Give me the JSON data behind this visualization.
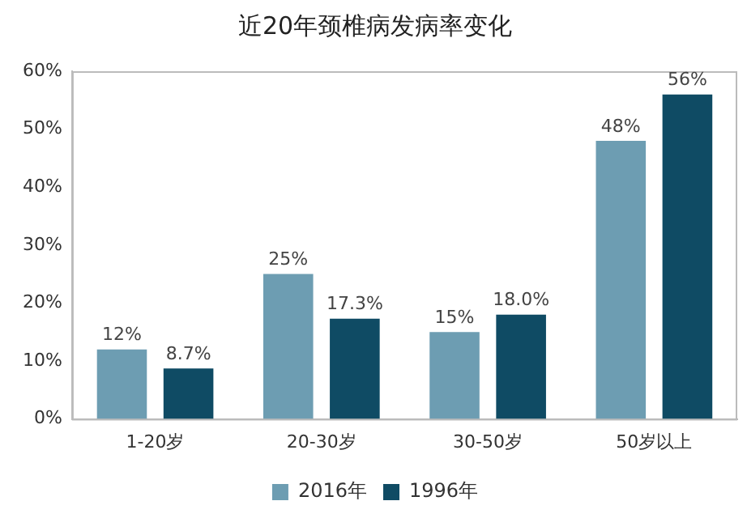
{
  "chart_data": {
    "type": "bar",
    "title": "近20年颈椎病发病率变化",
    "categories": [
      "1-20岁",
      "20-30岁",
      "30-50岁",
      "50岁以上"
    ],
    "series": [
      {
        "name": "2016年",
        "color": "#6d9db2",
        "values": [
          12,
          25,
          15,
          48
        ],
        "value_labels": [
          "12%",
          "25%",
          "15%",
          "48%"
        ]
      },
      {
        "name": "1996年",
        "color": "#0f4b64",
        "values": [
          8.7,
          17.3,
          18.0,
          56
        ],
        "value_labels": [
          "8.7%",
          "17.3%",
          "18.0%",
          "56%"
        ]
      }
    ],
    "ylim": [
      0,
      60
    ],
    "yticks": [
      {
        "value": 0,
        "label": "0%"
      },
      {
        "value": 10,
        "label": "10%"
      },
      {
        "value": 20,
        "label": "20%"
      },
      {
        "value": 30,
        "label": "30%"
      },
      {
        "value": 40,
        "label": "40%"
      },
      {
        "value": 50,
        "label": "50%"
      },
      {
        "value": 60,
        "label": "60%"
      }
    ],
    "grid": false,
    "legend": "bottom"
  }
}
